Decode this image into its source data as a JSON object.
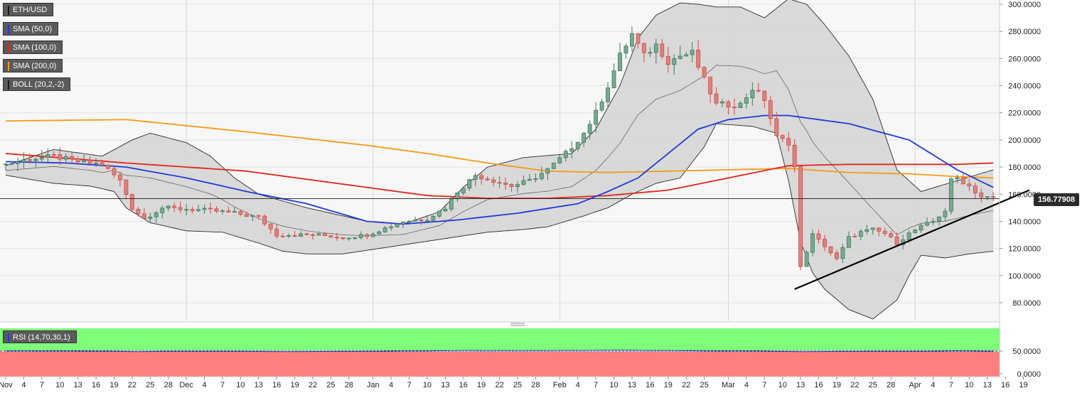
{
  "legend": [
    {
      "label": "ETH/USD",
      "color": "#1a1a1a"
    },
    {
      "label": "SMA (50,0)",
      "color": "#1f3bd8"
    },
    {
      "label": "SMA (100,0)",
      "color": "#e0261d"
    },
    {
      "label": "SMA (200,0)",
      "color": "#f59a17"
    },
    {
      "label": "BOLL (20,2,-2)",
      "color": "#1a1a1a"
    }
  ],
  "rsi_label": "RSI (14,70,30,1)",
  "current_price": "156.77908",
  "chart_data": {
    "type": "candlestick",
    "price_axis": {
      "ylim": [
        65,
        302
      ],
      "ticks": [
        "300.0000",
        "280.0000",
        "260.0000",
        "240.0000",
        "220.0000",
        "200.0000",
        "180.0000",
        "160.0000",
        "140.0000",
        "120.0000",
        "100.0000",
        "80.0000"
      ]
    },
    "rsi_axis": {
      "ylim": [
        0,
        100
      ],
      "ticks": [
        "50.0000",
        "0.0000"
      ],
      "overbought": 70,
      "oversold": 30
    },
    "x_axis": {
      "day_range": [
        0,
        170
      ],
      "ticks": [
        {
          "d": 0,
          "label": "Nov"
        },
        {
          "d": 3,
          "label": "4"
        },
        {
          "d": 6,
          "label": "7"
        },
        {
          "d": 9,
          "label": "10"
        },
        {
          "d": 12,
          "label": "13"
        },
        {
          "d": 15,
          "label": "16"
        },
        {
          "d": 18,
          "label": "19"
        },
        {
          "d": 21,
          "label": "22"
        },
        {
          "d": 24,
          "label": "25"
        },
        {
          "d": 27,
          "label": "28"
        },
        {
          "d": 30,
          "label": "Dec"
        },
        {
          "d": 33,
          "label": "4"
        },
        {
          "d": 36,
          "label": "7"
        },
        {
          "d": 39,
          "label": "10"
        },
        {
          "d": 42,
          "label": "13"
        },
        {
          "d": 45,
          "label": "16"
        },
        {
          "d": 48,
          "label": "19"
        },
        {
          "d": 51,
          "label": "22"
        },
        {
          "d": 54,
          "label": "25"
        },
        {
          "d": 57,
          "label": "28"
        },
        {
          "d": 61,
          "label": "Jan"
        },
        {
          "d": 64,
          "label": "4"
        },
        {
          "d": 67,
          "label": "7"
        },
        {
          "d": 70,
          "label": "10"
        },
        {
          "d": 73,
          "label": "13"
        },
        {
          "d": 76,
          "label": "16"
        },
        {
          "d": 79,
          "label": "19"
        },
        {
          "d": 82,
          "label": "22"
        },
        {
          "d": 85,
          "label": "25"
        },
        {
          "d": 88,
          "label": "28"
        },
        {
          "d": 92,
          "label": "Feb"
        },
        {
          "d": 95,
          "label": "4"
        },
        {
          "d": 98,
          "label": "7"
        },
        {
          "d": 101,
          "label": "10"
        },
        {
          "d": 104,
          "label": "13"
        },
        {
          "d": 107,
          "label": "16"
        },
        {
          "d": 110,
          "label": "19"
        },
        {
          "d": 113,
          "label": "22"
        },
        {
          "d": 116,
          "label": "25"
        },
        {
          "d": 120,
          "label": "Mar"
        },
        {
          "d": 123,
          "label": "4"
        },
        {
          "d": 126,
          "label": "7"
        },
        {
          "d": 129,
          "label": "10"
        },
        {
          "d": 132,
          "label": "13"
        },
        {
          "d": 135,
          "label": "16"
        },
        {
          "d": 138,
          "label": "19"
        },
        {
          "d": 141,
          "label": "22"
        },
        {
          "d": 144,
          "label": "25"
        },
        {
          "d": 147,
          "label": "28"
        },
        {
          "d": 151,
          "label": "Apr"
        },
        {
          "d": 154,
          "label": "4"
        },
        {
          "d": 157,
          "label": "7"
        },
        {
          "d": 160,
          "label": "10"
        },
        {
          "d": 163,
          "label": "13"
        },
        {
          "d": 166,
          "label": "16"
        },
        {
          "d": 169,
          "label": "19"
        }
      ],
      "month_dividers": [
        30,
        61,
        92,
        120,
        151
      ]
    },
    "ohlc_anchors": [
      [
        0,
        182
      ],
      [
        4,
        186
      ],
      [
        8,
        188
      ],
      [
        12,
        184
      ],
      [
        16,
        182
      ],
      [
        19,
        170
      ],
      [
        21,
        150
      ],
      [
        23,
        142
      ],
      [
        26,
        150
      ],
      [
        30,
        149
      ],
      [
        34,
        148
      ],
      [
        38,
        146
      ],
      [
        42,
        143
      ],
      [
        45,
        130
      ],
      [
        48,
        130
      ],
      [
        52,
        130
      ],
      [
        56,
        128
      ],
      [
        60,
        130
      ],
      [
        63,
        135
      ],
      [
        66,
        140
      ],
      [
        70,
        142
      ],
      [
        73,
        150
      ],
      [
        75,
        162
      ],
      [
        78,
        174
      ],
      [
        81,
        170
      ],
      [
        84,
        166
      ],
      [
        87,
        170
      ],
      [
        90,
        178
      ],
      [
        93,
        190
      ],
      [
        96,
        205
      ],
      [
        98,
        220
      ],
      [
        100,
        240
      ],
      [
        102,
        262
      ],
      [
        104,
        278
      ],
      [
        106,
        262
      ],
      [
        108,
        270
      ],
      [
        110,
        258
      ],
      [
        112,
        262
      ],
      [
        114,
        264
      ],
      [
        116,
        244
      ],
      [
        118,
        226
      ],
      [
        120,
        226
      ],
      [
        122,
        226
      ],
      [
        124,
        238
      ],
      [
        126,
        230
      ],
      [
        128,
        202
      ],
      [
        130,
        198
      ],
      [
        131,
        180
      ],
      [
        132,
        106
      ],
      [
        134,
        130
      ],
      [
        136,
        122
      ],
      [
        138,
        112
      ],
      [
        140,
        128
      ],
      [
        142,
        132
      ],
      [
        144,
        134
      ],
      [
        146,
        131
      ],
      [
        148,
        124
      ],
      [
        150,
        131
      ],
      [
        152,
        136
      ],
      [
        154,
        140
      ],
      [
        156,
        148
      ],
      [
        157,
        170
      ],
      [
        158,
        172
      ],
      [
        160,
        166
      ],
      [
        162,
        158
      ],
      [
        164,
        157
      ]
    ],
    "sma50_anchors": [
      [
        0,
        184
      ],
      [
        10,
        183
      ],
      [
        20,
        180
      ],
      [
        30,
        172
      ],
      [
        40,
        162
      ],
      [
        50,
        153
      ],
      [
        60,
        140
      ],
      [
        66,
        138
      ],
      [
        75,
        141
      ],
      [
        85,
        146
      ],
      [
        95,
        153
      ],
      [
        100,
        162
      ],
      [
        105,
        172
      ],
      [
        110,
        190
      ],
      [
        115,
        208
      ],
      [
        120,
        215
      ],
      [
        126,
        218
      ],
      [
        130,
        218
      ],
      [
        140,
        212
      ],
      [
        150,
        200
      ],
      [
        158,
        178
      ],
      [
        164,
        165
      ]
    ],
    "sma100_anchors": [
      [
        0,
        190
      ],
      [
        20,
        183
      ],
      [
        40,
        177
      ],
      [
        60,
        165
      ],
      [
        70,
        159
      ],
      [
        80,
        157
      ],
      [
        90,
        157
      ],
      [
        100,
        159
      ],
      [
        110,
        163
      ],
      [
        120,
        172
      ],
      [
        130,
        181
      ],
      [
        140,
        182
      ],
      [
        150,
        182
      ],
      [
        158,
        182
      ],
      [
        164,
        183
      ]
    ],
    "sma200_anchors": [
      [
        0,
        214
      ],
      [
        20,
        215
      ],
      [
        40,
        206
      ],
      [
        60,
        196
      ],
      [
        70,
        190
      ],
      [
        80,
        183
      ],
      [
        90,
        177
      ],
      [
        100,
        176
      ],
      [
        110,
        177
      ],
      [
        120,
        178
      ],
      [
        130,
        179
      ],
      [
        140,
        176
      ],
      [
        150,
        175
      ],
      [
        158,
        173
      ],
      [
        164,
        172
      ]
    ],
    "boll_upper_anchors": [
      [
        0,
        181
      ],
      [
        8,
        193
      ],
      [
        16,
        188
      ],
      [
        21,
        200
      ],
      [
        24,
        205
      ],
      [
        30,
        198
      ],
      [
        34,
        188
      ],
      [
        38,
        172
      ],
      [
        42,
        160
      ],
      [
        50,
        150
      ],
      [
        60,
        140
      ],
      [
        66,
        138
      ],
      [
        72,
        147
      ],
      [
        76,
        165
      ],
      [
        80,
        180
      ],
      [
        86,
        187
      ],
      [
        94,
        190
      ],
      [
        98,
        208
      ],
      [
        102,
        240
      ],
      [
        105,
        275
      ],
      [
        108,
        292
      ],
      [
        112,
        301
      ],
      [
        115,
        300
      ],
      [
        118,
        298
      ],
      [
        122,
        298
      ],
      [
        126,
        290
      ],
      [
        130,
        304
      ],
      [
        133,
        300
      ],
      [
        136,
        285
      ],
      [
        140,
        262
      ],
      [
        144,
        230
      ],
      [
        148,
        178
      ],
      [
        152,
        162
      ],
      [
        158,
        170
      ],
      [
        164,
        178
      ]
    ],
    "boll_lower_anchors": [
      [
        0,
        174
      ],
      [
        8,
        168
      ],
      [
        14,
        166
      ],
      [
        18,
        162
      ],
      [
        20,
        150
      ],
      [
        24,
        139
      ],
      [
        30,
        133
      ],
      [
        36,
        132
      ],
      [
        42,
        124
      ],
      [
        46,
        118
      ],
      [
        50,
        116
      ],
      [
        56,
        116
      ],
      [
        62,
        120
      ],
      [
        68,
        124
      ],
      [
        74,
        128
      ],
      [
        80,
        132
      ],
      [
        86,
        134
      ],
      [
        90,
        136
      ],
      [
        96,
        144
      ],
      [
        100,
        150
      ],
      [
        104,
        160
      ],
      [
        108,
        168
      ],
      [
        112,
        172
      ],
      [
        116,
        195
      ],
      [
        118,
        212
      ],
      [
        124,
        210
      ],
      [
        128,
        205
      ],
      [
        130,
        170
      ],
      [
        132,
        125
      ],
      [
        134,
        102
      ],
      [
        136,
        90
      ],
      [
        140,
        75
      ],
      [
        144,
        68
      ],
      [
        148,
        82
      ],
      [
        150,
        100
      ],
      [
        152,
        115
      ],
      [
        156,
        113
      ],
      [
        160,
        116
      ],
      [
        164,
        118
      ]
    ],
    "rsi_anchors": [
      [
        0,
        55
      ],
      [
        10,
        52
      ],
      [
        18,
        46
      ],
      [
        22,
        32
      ],
      [
        26,
        42
      ],
      [
        34,
        45
      ],
      [
        42,
        40
      ],
      [
        46,
        32
      ],
      [
        52,
        38
      ],
      [
        58,
        40
      ],
      [
        62,
        45
      ],
      [
        66,
        55
      ],
      [
        70,
        58
      ],
      [
        76,
        72
      ],
      [
        82,
        68
      ],
      [
        88,
        70
      ],
      [
        94,
        72
      ],
      [
        98,
        75
      ],
      [
        102,
        80
      ],
      [
        104,
        79
      ],
      [
        106,
        72
      ],
      [
        110,
        68
      ],
      [
        114,
        62
      ],
      [
        118,
        52
      ],
      [
        122,
        55
      ],
      [
        126,
        50
      ],
      [
        128,
        40
      ],
      [
        130,
        40
      ],
      [
        132,
        30
      ],
      [
        136,
        38
      ],
      [
        140,
        40
      ],
      [
        144,
        42
      ],
      [
        148,
        43
      ],
      [
        152,
        44
      ],
      [
        156,
        52
      ],
      [
        158,
        60
      ],
      [
        160,
        55
      ],
      [
        162,
        48
      ],
      [
        164,
        48
      ]
    ],
    "trendline": {
      "from": [
        131,
        90
      ],
      "to": [
        170,
        163
      ]
    }
  }
}
